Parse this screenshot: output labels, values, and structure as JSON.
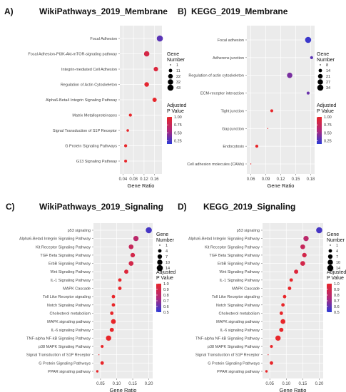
{
  "chart_data": [
    {
      "type": "scatter",
      "panel_label": "A)",
      "title": "WikiPathways_2019_Membrane",
      "xlabel": "Gene Ratio",
      "xticks": [
        0.04,
        0.08,
        0.12,
        0.16
      ],
      "xlim": [
        0.028,
        0.188
      ],
      "categories": [
        "Focal Adhesion",
        "Focal Adhesion-PI3K-Akt-mTOR-signaling pathway",
        "Integrin-mediated Cell Adhesion",
        "Regulation of Actin Cytoskeleton",
        "Alpha6-Beta4 Integrin Signaling Pathway",
        "Matrix Metalloproteinases",
        "Signal Transduction of S1P Receptor",
        "G Protein Signaling Pathways",
        "G13 Signaling Pathway"
      ],
      "x": [
        0.18,
        0.13,
        0.165,
        0.13,
        0.16,
        0.068,
        0.058,
        0.05,
        0.05
      ],
      "gene_number": [
        43,
        32,
        20,
        22,
        18,
        8,
        5,
        8,
        7
      ],
      "p_value": [
        0.3,
        0.85,
        0.9,
        0.97,
        0.99,
        1.0,
        1.0,
        1.0,
        1.0
      ],
      "size_legend_title": "Gene\nNumber",
      "size_legend": [
        1,
        11,
        22,
        32,
        43
      ],
      "color_legend_title": "Adjusted\nP Value",
      "color_ticks": [
        1.0,
        0.75,
        0.5,
        0.25
      ],
      "color_ticks_text": [
        "1.00",
        "0.75",
        "0.50",
        "0.25"
      ],
      "color_range": [
        0.15,
        1.0
      ]
    },
    {
      "type": "scatter",
      "panel_label": "B)",
      "title": "KEGG_2019_Membrane",
      "xlabel": "Gene Ratio",
      "xticks": [
        0.06,
        0.09,
        0.12,
        0.15,
        0.18
      ],
      "xlim": [
        0.052,
        0.188
      ],
      "categories": [
        "Focal adhesion",
        "Adherens junction",
        "Regulation of actin cytoskeleton",
        "ECM-receptor interaction",
        "Tight junction",
        "Gap junction",
        "Endocytosis",
        "Cell adhesion molecules (CAMs)"
      ],
      "x": [
        0.175,
        0.182,
        0.138,
        0.175,
        0.102,
        0.094,
        0.072,
        0.06
      ],
      "gene_number": [
        34,
        12,
        27,
        12,
        12,
        5,
        12,
        8
      ],
      "p_value": [
        0.2,
        0.3,
        0.4,
        0.35,
        1.0,
        1.0,
        1.0,
        1.0
      ],
      "size_legend_title": "Gene\nNumber",
      "size_legend": [
        8,
        14,
        21,
        27,
        34
      ],
      "color_legend_title": "Adjusted\nP Value",
      "color_ticks": [
        1.0,
        0.75,
        0.5,
        0.25
      ],
      "color_ticks_text": [
        "1.00",
        "0.75",
        "0.50",
        "0.25"
      ],
      "color_range": [
        0.15,
        1.0
      ]
    },
    {
      "type": "scatter",
      "panel_label": "C)",
      "title": "WikiPathways_2019_Signaling",
      "xlabel": "Gene Ratio",
      "xticks": [
        0.05,
        0.1,
        0.15,
        0.2
      ],
      "xticks_text": [
        "0.05",
        "0.10",
        "0.15",
        "0.20"
      ],
      "xlim": [
        0.028,
        0.212
      ],
      "categories": [
        "p53 signaling",
        "Alpha6-Beta4 Integrin Signaling Pathway",
        "Kit Receptor Signaling Pathway",
        "TGF Beta Signaling Pathway",
        "ErbB Signaling Pathway",
        "Wnt Signaling Pathway",
        "IL-1 Signaling Pathway",
        "MAPK Cascade",
        "Toll Like Receptor signaling",
        "Notch Signaling Pathway",
        "Cholesterol metabolism",
        "MAPK signaling pathway",
        "IL-6 signaling Pathway",
        "TNF-alpha NF-kB Signaling Pathway",
        "p38 MAPK Signaling Pathway",
        "Signal Transduction of S1P Receptor",
        "G Protein Signaling Pathways",
        "PPAR signaling pathway"
      ],
      "x": [
        0.2,
        0.16,
        0.145,
        0.15,
        0.145,
        0.13,
        0.11,
        0.11,
        0.09,
        0.09,
        0.085,
        0.09,
        0.085,
        0.075,
        0.055,
        0.045,
        0.055,
        0.04
      ],
      "gene_number": [
        14,
        10,
        8,
        7,
        8,
        6,
        4,
        4,
        4,
        4,
        4,
        8,
        6,
        10,
        3,
        1,
        4,
        2
      ],
      "p_value": [
        0.55,
        0.8,
        0.85,
        0.9,
        0.9,
        0.95,
        1.0,
        1.0,
        1.0,
        1.0,
        1.0,
        1.0,
        1.0,
        1.0,
        1.0,
        1.0,
        1.0,
        1.0
      ],
      "size_legend_title": "Gene\nNumber",
      "size_legend": [
        1,
        4,
        7,
        10,
        14
      ],
      "color_legend_title": "Adjusted\nP Value",
      "color_ticks": [
        1.0,
        0.9,
        0.8,
        0.7,
        0.6,
        0.5
      ],
      "color_ticks_text": [
        "1.0",
        "0.9",
        "0.8",
        "0.7",
        "0.6",
        "0.5"
      ],
      "color_range": [
        0.5,
        1.0
      ]
    },
    {
      "type": "scatter",
      "panel_label": "D)",
      "title": "KEGG_2019_Signaling",
      "xlabel": "Gene Ratio",
      "xticks": [
        0.05,
        0.1,
        0.15,
        0.2
      ],
      "xticks_text": [
        "0.05",
        "0.10",
        "0.15",
        "0.20"
      ],
      "xlim": [
        0.028,
        0.212
      ],
      "categories": [
        "p53 signaling",
        "Alpha6-Beta4 Integrin Signaling Pathway",
        "Kit Receptor Signaling Pathway",
        "TGF Beta Signaling Pathway",
        "ErbB Signaling Pathway",
        "Wnt Signaling Pathway",
        "IL-1 Signaling Pathway",
        "MAPK Cascade",
        "Toll Like Receptor signaling",
        "Notch Signaling Pathway",
        "Cholesterol metabolism",
        "MAPK signaling pathway",
        "IL-6 signaling Pathway",
        "TNF-alpha NF-kB Signaling Pathway",
        "p38 MAPK Signaling Pathway",
        "Signal Transduction of S1P Receptor",
        "G Protein Signaling Pathways",
        "PPAR signaling pathway"
      ],
      "x": [
        0.2,
        0.16,
        0.15,
        0.155,
        0.15,
        0.13,
        0.115,
        0.11,
        0.095,
        0.09,
        0.085,
        0.09,
        0.085,
        0.075,
        0.055,
        0.045,
        0.055,
        0.04
      ],
      "gene_number": [
        14,
        10,
        8,
        7,
        8,
        6,
        4,
        4,
        4,
        4,
        4,
        8,
        6,
        10,
        3,
        1,
        4,
        2
      ],
      "p_value": [
        0.55,
        0.8,
        0.85,
        0.9,
        0.9,
        0.95,
        1.0,
        1.0,
        1.0,
        1.0,
        1.0,
        1.0,
        1.0,
        1.0,
        1.0,
        1.0,
        1.0,
        1.0
      ],
      "size_legend_title": "Gene\nNumber",
      "size_legend": [
        1,
        4,
        7,
        10,
        14
      ],
      "color_legend_title": "Adjusted\nP Value",
      "color_ticks": [
        1.0,
        0.9,
        0.8,
        0.7,
        0.6,
        0.5
      ],
      "color_ticks_text": [
        "1.0",
        "0.9",
        "0.8",
        "0.7",
        "0.6",
        "0.5"
      ],
      "color_range": [
        0.5,
        1.0
      ]
    }
  ],
  "colors": {
    "high_p": "#e8262a",
    "mid_p": "#b0287a",
    "low_p": "#2b3ad6",
    "panel_bg": "#ebebeb",
    "grid": "#ffffff"
  }
}
